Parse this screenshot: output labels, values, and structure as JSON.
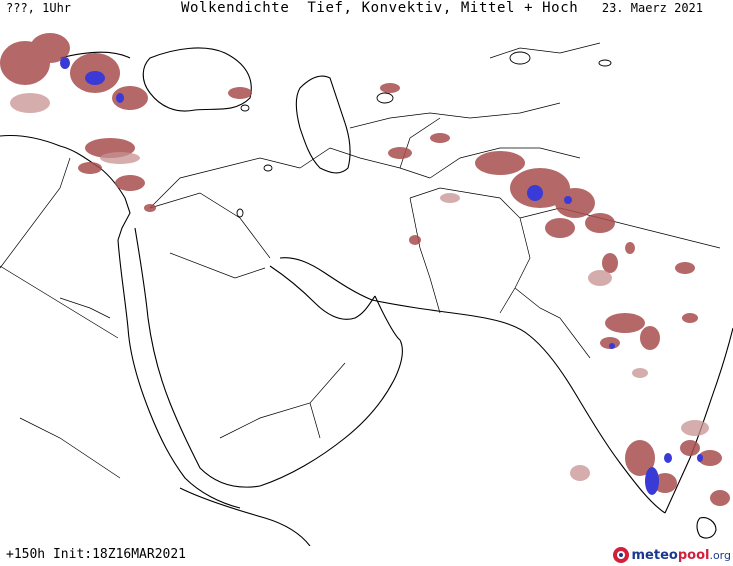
{
  "header": {
    "left": "???, 1Uhr",
    "title": "Wolkendichte  Tief, Konvektiv, Mittel + Hoch",
    "date": "23. Maerz 2021"
  },
  "footer": {
    "run": "+150h Init:18Z16MAR2021"
  },
  "brand": {
    "part1": "meteo",
    "part2": "pool",
    "part3": ".org",
    "icon": "meteopool-logo-icon"
  },
  "colors": {
    "cloud_low": "#a84e4e",
    "cloud_light": "#c79191",
    "cloud_convective": "#3a3ad6",
    "borders": "#000000"
  }
}
